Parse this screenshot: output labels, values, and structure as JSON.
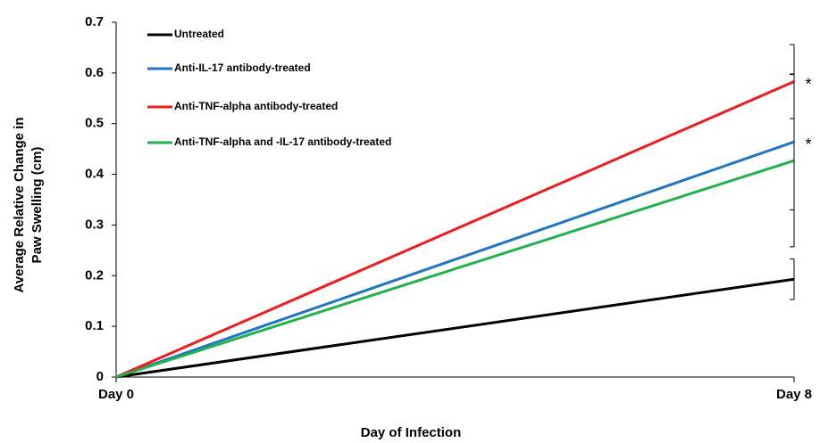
{
  "chart_data": {
    "type": "line",
    "xlabel": "Day of Infection",
    "ylabel": [
      "Average Relative Change in",
      "Paw Swelling (cm)"
    ],
    "categories": [
      "Day 0",
      "Day 8"
    ],
    "ylim": [
      0,
      0.7
    ],
    "yticks": [
      0,
      0.1,
      0.2,
      0.3,
      0.4,
      0.5,
      0.6,
      0.7
    ],
    "legend": "upper left",
    "series": [
      {
        "name": "Untreated",
        "color": "#000000",
        "values": [
          0,
          0.193
        ],
        "errors": [
          null,
          0.04
        ]
      },
      {
        "name": "Anti-IL-17 antibody-treated",
        "color": "#1f77c4",
        "values": [
          0,
          0.464
        ],
        "errors": [
          null,
          0.134
        ],
        "annotation": "*"
      },
      {
        "name": "Anti-TNF-alpha antibody-treated",
        "color": "#ee1c1c",
        "values": [
          0,
          0.583
        ],
        "errors": [
          null,
          0.073
        ],
        "annotation": "*"
      },
      {
        "name": "Anti-TNF-alpha and -IL-17 antibody-treated",
        "color": "#22b24c",
        "values": [
          0,
          0.427
        ],
        "errors": [
          null,
          0.17
        ]
      }
    ]
  }
}
